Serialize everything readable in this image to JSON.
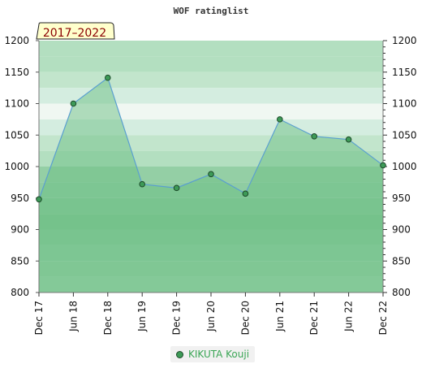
{
  "chart_data": {
    "type": "area",
    "title": "WOF ratinglist",
    "badge": "2017–2022",
    "xlabel": "",
    "ylabel": "",
    "x": [
      "Dec 17",
      "Jun 18",
      "Dec 18",
      "Jun 19",
      "Dec 19",
      "Jun 20",
      "Dec 20",
      "Jun 21",
      "Dec 21",
      "Jun 22",
      "Dec 22"
    ],
    "ylim": [
      800,
      1200
    ],
    "yticks": [
      800,
      850,
      900,
      950,
      1000,
      1050,
      1100,
      1150,
      1200
    ],
    "grid": true,
    "legend_position": "bottom-center",
    "series": [
      {
        "name": "KIKUTA Kouji",
        "values": [
          948,
          1100,
          1141,
          972,
          966,
          988,
          957,
          1075,
          1048,
          1043,
          1002
        ]
      }
    ],
    "colors": {
      "line": "#5a9fd0",
      "fill": "#6cbf84",
      "marker": "#3d9a57",
      "marker_stroke": "#1d4a2a",
      "badge_bg": "#ffffcc",
      "badge_text": "#8b0000"
    }
  }
}
